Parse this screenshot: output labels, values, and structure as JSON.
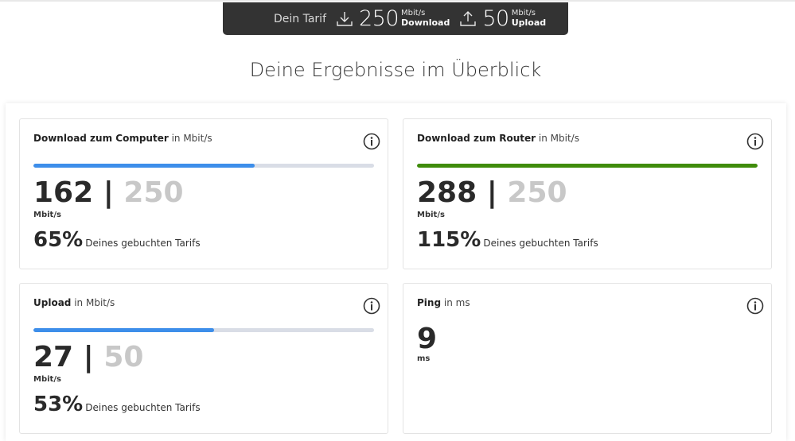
{
  "tarif": {
    "label": "Dein Tarif",
    "download_value": "250",
    "download_unit": "Mbit/s",
    "download_label": "Download",
    "upload_value": "50",
    "upload_unit": "Mbit/s",
    "upload_label": "Upload"
  },
  "title": "Deine Ergebnisse im Überblick",
  "colors": {
    "blue": "#3d8eea",
    "green": "#3f8c0a",
    "track": "#d9dde6"
  },
  "cards": {
    "download_computer": {
      "title": "Download zum Computer",
      "unit": "in Mbit/s",
      "value": "162",
      "separator": "|",
      "max": "250",
      "value_unit": "Mbit/s",
      "percent": "65%",
      "percent_text": "Deines gebuchten Tarifs",
      "progress": 0.65
    },
    "download_router": {
      "title": "Download zum Router",
      "unit": "in Mbit/s",
      "value": "288",
      "separator": "|",
      "max": "250",
      "value_unit": "Mbit/s",
      "percent": "115%",
      "percent_text": "Deines gebuchten Tarifs",
      "progress": 1.0
    },
    "upload": {
      "title": "Upload",
      "unit": "in Mbit/s",
      "value": "27",
      "separator": "|",
      "max": "50",
      "value_unit": "Mbit/s",
      "percent": "53%",
      "percent_text": "Deines gebuchten Tarifs",
      "progress": 0.53
    },
    "ping": {
      "title": "Ping",
      "unit": "in ms",
      "value": "9",
      "value_unit": "ms"
    }
  }
}
